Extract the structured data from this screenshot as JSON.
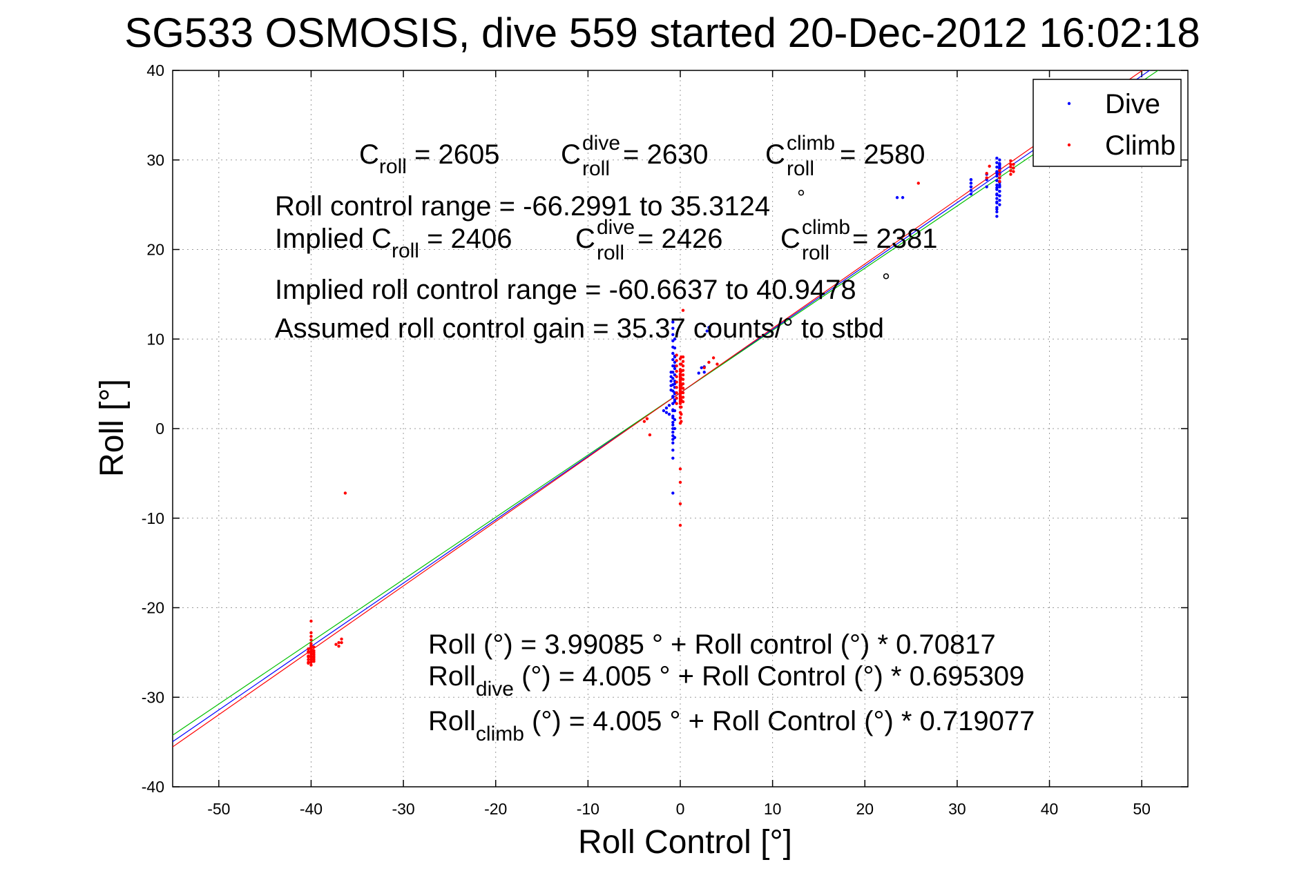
{
  "chart_data": {
    "type": "scatter",
    "title": "SG533 OSMOSIS, dive 559 started 20-Dec-2012 16:02:18",
    "xlabel": "Roll Control [°]",
    "ylabel": "Roll [°]",
    "xlim": [
      -55,
      55
    ],
    "ylim": [
      -40,
      40
    ],
    "xticks": [
      -50,
      -40,
      -30,
      -20,
      -10,
      0,
      10,
      20,
      30,
      40,
      50
    ],
    "yticks": [
      -40,
      -30,
      -20,
      -10,
      0,
      10,
      20,
      30,
      40
    ],
    "grid": true,
    "legend_position": "top-right",
    "series": [
      {
        "name": "Dive",
        "color": "#0000ff",
        "x": [
          -0.8,
          -0.8,
          -0.8,
          -0.8,
          -0.8,
          -0.8,
          -0.8,
          -0.8,
          -0.8,
          -0.8,
          -0.8,
          -0.8,
          -0.8,
          -0.8,
          -0.8,
          -0.8,
          -0.8,
          -0.8,
          -0.8,
          -0.8,
          -0.8,
          -0.8,
          -0.8,
          -0.8,
          -0.8,
          -0.8,
          -0.8,
          -0.8,
          -0.8,
          -0.8,
          -0.6,
          -0.6,
          -0.6,
          -0.6,
          -0.6,
          -0.6,
          -0.6,
          -0.6,
          -0.6,
          -0.6,
          -0.6,
          -0.6,
          -0.6,
          -0.6,
          -0.6,
          -0.6,
          -0.6,
          -0.6,
          -0.6,
          -0.6,
          -1.5,
          -1.5,
          -1.2,
          -1.2,
          -1.8,
          -1.0,
          -1.0,
          -1.0,
          -1.0,
          -1.0,
          2.0,
          2.3,
          2.6,
          2.6,
          2.9,
          3.1,
          23.5,
          24.1,
          31.5,
          31.5,
          31.5,
          31.5,
          31.5,
          31.5,
          31.5,
          31.5,
          34.3,
          34.3,
          34.3,
          34.3,
          34.3,
          34.3,
          34.3,
          34.3,
          34.3,
          34.3,
          34.3,
          34.3,
          34.3,
          34.3,
          34.3,
          34.3,
          34.3,
          34.3,
          34.3,
          34.3,
          34.6,
          34.6,
          34.6,
          34.6,
          34.6,
          34.6,
          34.6,
          34.6,
          34.6,
          34.6,
          34.6,
          34.6,
          34.6,
          34.6,
          34.6,
          34.6,
          34.6,
          34.6,
          34.6,
          34.6,
          34.6,
          34.6,
          34.6,
          34.6,
          34.6,
          34.6,
          34.6,
          34.6,
          34.6,
          34.6,
          33.2,
          33.2,
          33.2
        ],
        "y": [
          -7.2,
          -3.3,
          -2.4,
          -1.6,
          -0.8,
          0.0,
          0.7,
          1.4,
          2.1,
          2.8,
          3.5,
          4.2,
          4.9,
          5.6,
          6.3,
          7.0,
          7.7,
          8.4,
          9.1,
          9.8,
          10.5,
          11.2,
          11.9,
          -1.2,
          -0.4,
          0.4,
          1.2,
          2.0,
          2.8,
          3.6,
          -1.0,
          0.0,
          1.0,
          2.0,
          3.0,
          4.0,
          5.0,
          6.0,
          7.0,
          8.0,
          9.0,
          10.0,
          3.2,
          3.9,
          4.6,
          5.3,
          6.0,
          6.7,
          7.4,
          8.1,
          1.8,
          2.3,
          1.6,
          2.6,
          2.0,
          4.3,
          4.8,
          5.3,
          5.8,
          6.3,
          6.2,
          6.8,
          6.9,
          6.3,
          10.9,
          11.3,
          25.8,
          25.8,
          26.2,
          26.6,
          27.0,
          27.4,
          27.8,
          27.0,
          27.4,
          27.8,
          23.7,
          24.2,
          24.7,
          25.2,
          25.7,
          26.2,
          26.7,
          27.2,
          27.7,
          28.2,
          28.7,
          29.2,
          29.7,
          30.2,
          24.5,
          25.3,
          26.1,
          26.9,
          27.7,
          28.5,
          25.0,
          25.5,
          26.0,
          26.5,
          27.0,
          27.5,
          28.0,
          28.5,
          29.0,
          29.5,
          30.0,
          26.0,
          26.5,
          27.0,
          27.5,
          28.0,
          28.5,
          29.0,
          29.5,
          27.2,
          27.6,
          28.0,
          28.4,
          28.8,
          29.2,
          29.6,
          28.0,
          28.5,
          29.0,
          29.4,
          27.0,
          27.8,
          28.4
        ]
      },
      {
        "name": "Climb",
        "color": "#ff0000",
        "x": [
          0.0,
          0.0,
          0.0,
          0.0,
          0.0,
          0.0,
          0.0,
          0.0,
          0.0,
          0.0,
          0.0,
          0.0,
          0.0,
          0.0,
          0.0,
          0.0,
          0.0,
          0.0,
          0.0,
          0.0,
          0.0,
          0.0,
          0.0,
          0.0,
          0.0,
          0.0,
          0.0,
          0.0,
          0.0,
          0.0,
          0.0,
          0.0,
          0.0,
          0.0,
          0.0,
          0.0,
          0.0,
          0.0,
          0.0,
          0.0,
          0.3,
          0.3,
          0.3,
          0.3,
          0.3,
          0.3,
          0.3,
          0.3,
          0.3,
          0.3,
          0.3,
          0.3,
          -0.4,
          -0.4,
          -0.4,
          -0.4,
          -0.4,
          -0.4,
          -0.4,
          -0.4,
          -0.4,
          -0.4,
          0.1,
          0.1,
          0.1,
          0.1,
          0.1,
          0.1,
          0.1,
          0.1,
          0.1,
          0.1,
          -3.9,
          -3.6,
          -3.3,
          2.6,
          3.1,
          3.6,
          4.0,
          -40.0,
          -40.0,
          -40.0,
          -40.0,
          -40.0,
          -40.0,
          -40.0,
          -40.0,
          -40.0,
          -40.0,
          -40.0,
          -40.0,
          -40.0,
          -40.0,
          -40.0,
          -40.0,
          -40.0,
          -40.0,
          -40.0,
          -40.0,
          -39.7,
          -39.7,
          -39.7,
          -39.7,
          -39.7,
          -39.7,
          -39.7,
          -39.7,
          -40.3,
          -40.3,
          -40.3,
          -40.3,
          -40.3,
          -40.3,
          -40.3,
          -40.3,
          -37.0,
          -37.0,
          -36.7,
          -36.7,
          -37.3,
          -36.3,
          25.8,
          34.6,
          34.6,
          34.6,
          34.6,
          35.8,
          35.8,
          35.8,
          35.8,
          35.8,
          36.1,
          36.1,
          36.1,
          33.2,
          33.2,
          33.5
        ],
        "y": [
          -10.8,
          -8.4,
          -6.0,
          -4.5,
          0.6,
          1.2,
          1.8,
          2.4,
          3.0,
          3.6,
          4.2,
          4.8,
          5.4,
          6.0,
          6.6,
          7.2,
          7.8,
          2.8,
          3.1,
          3.4,
          3.7,
          4.0,
          4.3,
          4.6,
          4.9,
          5.2,
          5.5,
          5.8,
          6.1,
          6.4,
          3.3,
          3.6,
          3.9,
          4.2,
          4.5,
          4.8,
          5.1,
          5.4,
          5.7,
          6.0,
          3.0,
          3.5,
          4.0,
          4.5,
          5.0,
          5.5,
          6.0,
          6.5,
          7.0,
          7.5,
          8.0,
          13.2,
          2.8,
          3.4,
          4.0,
          4.6,
          5.2,
          5.8,
          6.4,
          7.0,
          7.6,
          8.2,
          0.8,
          1.6,
          2.4,
          3.2,
          4.0,
          4.8,
          5.6,
          6.4,
          7.2,
          8.0,
          0.8,
          1.1,
          -0.7,
          6.8,
          7.4,
          7.9,
          7.2,
          -21.5,
          -22.8,
          -23.6,
          -24.2,
          -24.5,
          -24.8,
          -25.1,
          -25.4,
          -25.7,
          -26.0,
          -24.0,
          -24.3,
          -24.6,
          -24.9,
          -25.2,
          -25.5,
          -25.8,
          -26.1,
          -26.4,
          -23.2,
          -24.4,
          -24.8,
          -25.2,
          -25.6,
          -26.0,
          -25.0,
          -25.4,
          -25.8,
          -24.6,
          -25.0,
          -25.4,
          -25.8,
          -26.2,
          -24.9,
          -25.5,
          -26.1,
          -23.9,
          -24.3,
          -23.5,
          -23.9,
          -24.1,
          -7.2,
          27.4,
          27.6,
          28.0,
          28.4,
          28.8,
          28.4,
          28.8,
          29.2,
          29.5,
          29.9,
          28.7,
          29.1,
          29.5,
          28.0,
          28.5,
          29.3
        ]
      }
    ],
    "fit_lines": [
      {
        "name": "Roll",
        "color": "#0000ff",
        "intercept": 3.99085,
        "slope": 0.70817
      },
      {
        "name": "Roll dive",
        "color": "#00c000",
        "intercept": 4.005,
        "slope": 0.695309
      },
      {
        "name": "Roll climb",
        "color": "#ff0000",
        "intercept": 4.005,
        "slope": 0.719077
      }
    ],
    "legend": [
      {
        "label": "Dive",
        "color": "#0000ff"
      },
      {
        "label": "Climb",
        "color": "#ff0000"
      }
    ],
    "annotations": {
      "c_roll": {
        "base": "C",
        "sub": "roll",
        "rest": " = 2605"
      },
      "c_roll_dive": {
        "base": "C",
        "sup": "dive",
        "sub": "roll",
        "rest": " = 2630"
      },
      "c_roll_climb": {
        "base": "C",
        "sup": "climb",
        "sub": "roll",
        "rest": " = 2580"
      },
      "range": "Roll control range = -66.2991 to 35.3124",
      "implied_prefix": "Implied C",
      "implied_sub": "roll",
      "implied_rest": " = 2406",
      "implied_dive": {
        "base": "C",
        "sup": "dive",
        "sub": "roll",
        "rest": " = 2426"
      },
      "implied_climb": {
        "base": "C",
        "sup": "climb",
        "sub": "roll",
        "rest": " = 2381"
      },
      "implied_range": "Implied roll control range = -60.6637 to 40.9478",
      "gain": "Assumed roll control gain = 35.37 counts/° to stbd",
      "eq1": "Roll (°) = 3.99085 ° + Roll control (°) * 0.70817",
      "eq2_base": "Roll",
      "eq2_sub": "dive",
      "eq2_rest": " (°) = 4.005 ° + Roll Control (°) * 0.695309",
      "eq3_base": "Roll",
      "eq3_sub": "climb",
      "eq3_rest": " (°) = 4.005 ° + Roll Control (°) * 0.719077",
      "degree_mark": "°"
    }
  }
}
